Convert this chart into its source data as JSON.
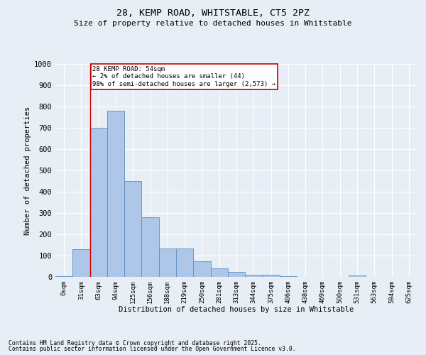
{
  "title1": "28, KEMP ROAD, WHITSTABLE, CT5 2PZ",
  "title2": "Size of property relative to detached houses in Whitstable",
  "xlabel": "Distribution of detached houses by size in Whitstable",
  "ylabel": "Number of detached properties",
  "categories": [
    "0sqm",
    "31sqm",
    "63sqm",
    "94sqm",
    "125sqm",
    "156sqm",
    "188sqm",
    "219sqm",
    "250sqm",
    "281sqm",
    "313sqm",
    "344sqm",
    "375sqm",
    "406sqm",
    "438sqm",
    "469sqm",
    "500sqm",
    "531sqm",
    "563sqm",
    "594sqm",
    "625sqm"
  ],
  "values": [
    5,
    130,
    700,
    780,
    450,
    280,
    135,
    135,
    72,
    40,
    22,
    11,
    11,
    5,
    0,
    0,
    0,
    8,
    0,
    0,
    0
  ],
  "bar_color": "#aec6e8",
  "bar_edge_color": "#5a8fc0",
  "annotation_text": "28 KEMP ROAD: 54sqm\n← 2% of detached houses are smaller (44)\n98% of semi-detached houses are larger (2,573) →",
  "vline_color": "#cc0000",
  "vline_x": 1.5,
  "annotation_box_color": "#ffffff",
  "annotation_box_edge_color": "#cc0000",
  "ylim": [
    0,
    1000
  ],
  "yticks": [
    0,
    100,
    200,
    300,
    400,
    500,
    600,
    700,
    800,
    900,
    1000
  ],
  "background_color": "#e8eef5",
  "footer1": "Contains HM Land Registry data © Crown copyright and database right 2025.",
  "footer2": "Contains public sector information licensed under the Open Government Licence v3.0."
}
